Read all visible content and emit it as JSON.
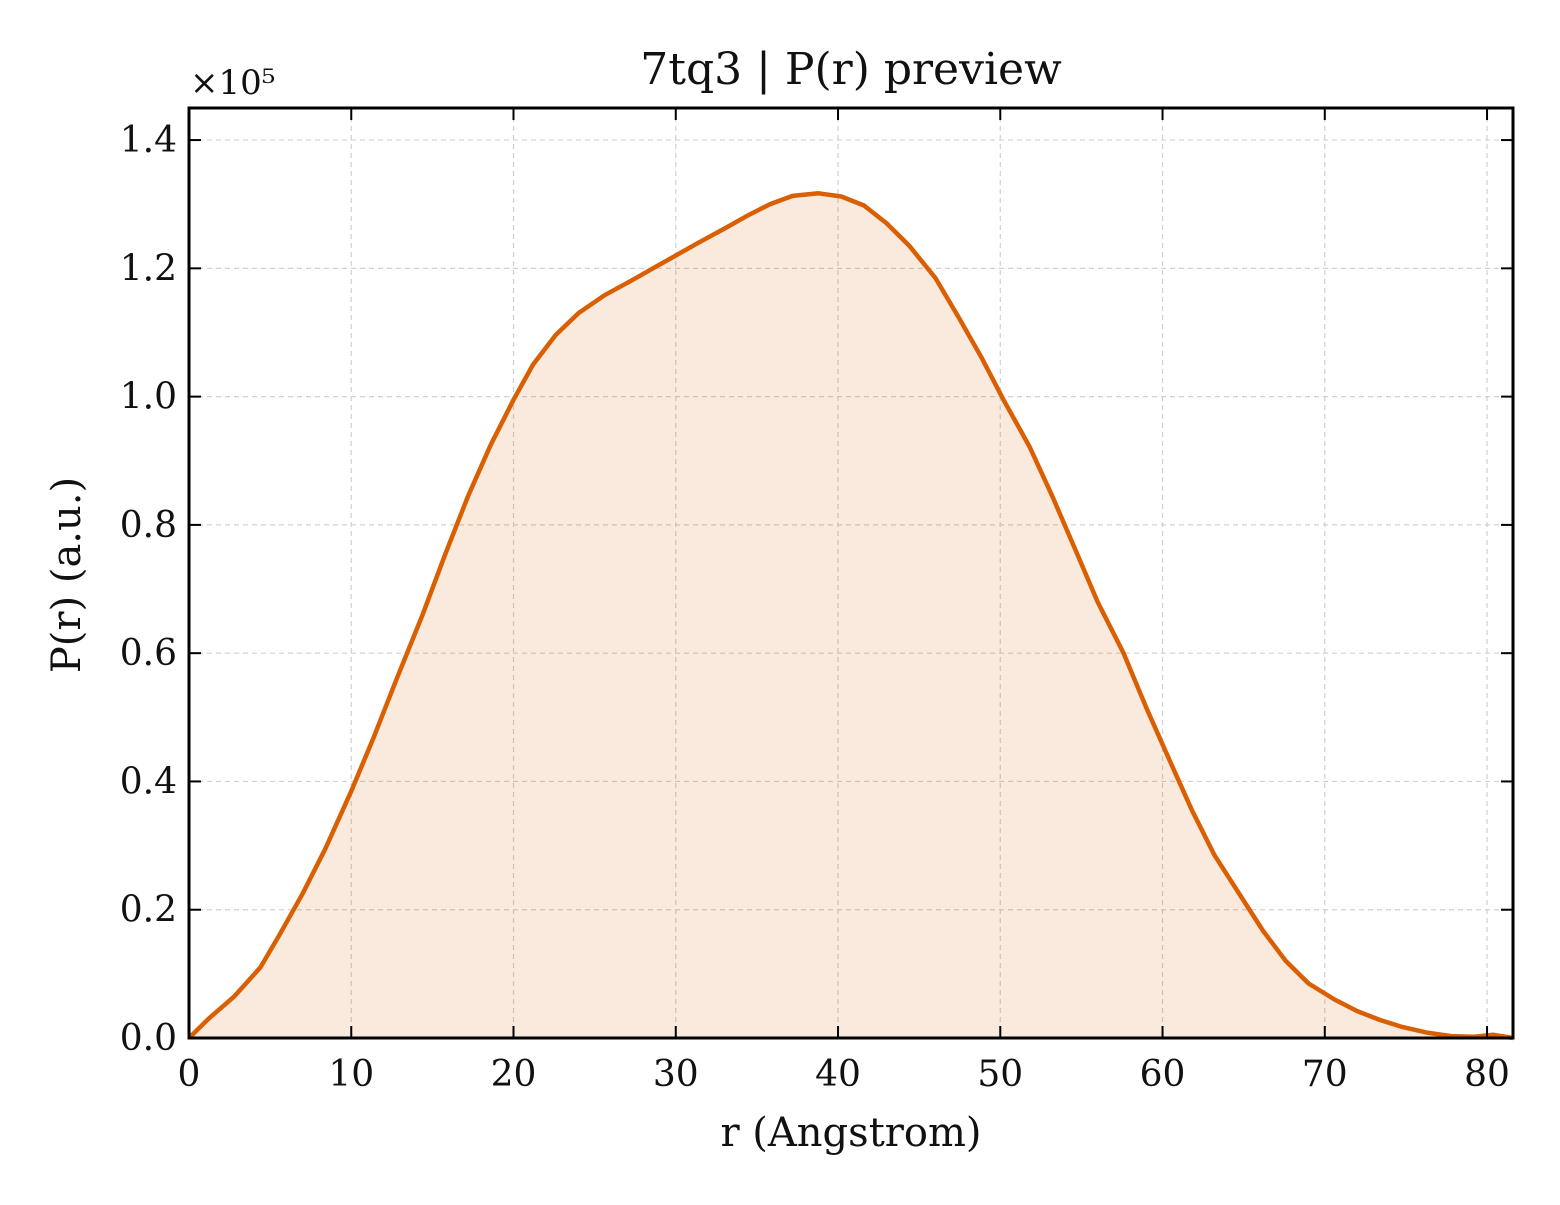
{
  "chart_data": {
    "type": "area",
    "title": "7tq3 | P(r) preview",
    "xlabel": "r (Angstrom)",
    "ylabel": "P(r) (a.u.)",
    "y_scale_label": "×10⁵",
    "y_multiplier": 100000,
    "xlim": [
      0,
      81.6
    ],
    "ylim": [
      0,
      1.45
    ],
    "x_ticks": [
      0,
      10,
      20,
      30,
      40,
      50,
      60,
      70,
      80
    ],
    "y_ticks": [
      0.0,
      0.2,
      0.4,
      0.6,
      0.8,
      1.0,
      1.2,
      1.4
    ],
    "grid": true,
    "tick_direction": "in",
    "line_color": "#d95f02",
    "fill_color": "#d95f02",
    "fill_opacity": 0.13,
    "x": [
      0,
      1.2,
      2.8,
      4.4,
      5.6,
      7.0,
      8.4,
      10.0,
      11.4,
      12.8,
      14.4,
      15.8,
      17.2,
      18.6,
      20.0,
      21.2,
      22.6,
      24.0,
      25.6,
      27.2,
      28.6,
      30.0,
      31.4,
      33.0,
      34.4,
      35.8,
      37.2,
      38.8,
      40.2,
      41.6,
      43.0,
      44.4,
      46.0,
      47.4,
      48.8,
      50.2,
      51.8,
      53.2,
      54.6,
      56.0,
      57.6,
      59.0,
      60.4,
      61.8,
      63.2,
      64.8,
      66.2,
      67.6,
      69.0,
      70.6,
      72.0,
      73.4,
      74.8,
      76.4,
      77.8,
      79.2,
      80.4,
      81.6
    ],
    "values": [
      0.0,
      0.03,
      0.065,
      0.11,
      0.162,
      0.225,
      0.295,
      0.385,
      0.47,
      0.56,
      0.66,
      0.755,
      0.845,
      0.925,
      0.995,
      1.05,
      1.096,
      1.13,
      1.158,
      1.18,
      1.2,
      1.22,
      1.24,
      1.262,
      1.282,
      1.3,
      1.313,
      1.317,
      1.312,
      1.298,
      1.27,
      1.235,
      1.185,
      1.125,
      1.063,
      0.995,
      0.922,
      0.845,
      0.763,
      0.68,
      0.6,
      0.515,
      0.435,
      0.356,
      0.285,
      0.222,
      0.167,
      0.12,
      0.085,
      0.06,
      0.042,
      0.028,
      0.017,
      0.008,
      0.003,
      0.002,
      0.005,
      0.0
    ]
  }
}
